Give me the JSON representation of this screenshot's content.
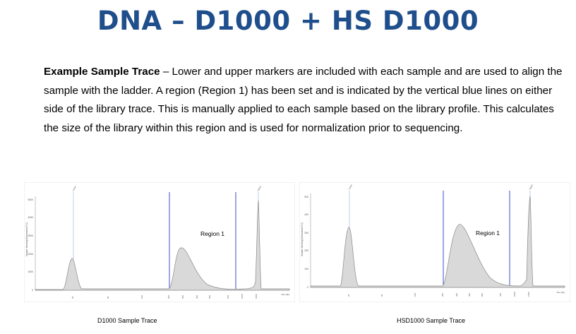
{
  "title": "DNA – D1000 + HS D1000",
  "paragraph": {
    "bold": "Example Sample Trace",
    "text": " – Lower and upper markers are included with each sample and are used to align the sample with the ladder. A region (Region 1) has been set and is indicated by the vertical blue lines on either side of the library trace. This is manually applied to each sample based on the library profile. This calculates the size of the library within this region and is used for normalization prior to sequencing."
  },
  "traces": [
    {
      "id": "d1000",
      "caption": "D1000 Sample Trace",
      "region_label": "Region 1",
      "ylabel": "Sample Intensity [Normalized FU]",
      "xlabel": "Size [bp]",
      "y_ticks": [
        "0",
        "1000",
        "2000",
        "3000",
        "4000",
        "5000"
      ],
      "x_ticks": [
        "25",
        "50",
        "100",
        "200",
        "300",
        "400",
        "500",
        "700",
        "1000",
        "1500"
      ],
      "lower_marker_label": "Lower",
      "upper_marker_label": "Upper"
    },
    {
      "id": "hsd1000",
      "caption": "HSD1000 Sample Trace",
      "region_label": "Region 1",
      "ylabel": "Sample Intensity [Normalized FU]",
      "xlabel": "Size [bp]",
      "y_ticks": [
        "0",
        "100",
        "200",
        "300",
        "400",
        "500"
      ],
      "x_ticks": [
        "25",
        "50",
        "100",
        "200",
        "300",
        "400",
        "500",
        "700",
        "1000",
        "1500"
      ],
      "lower_marker_label": "Lower",
      "upper_marker_label": "Upper"
    }
  ]
}
